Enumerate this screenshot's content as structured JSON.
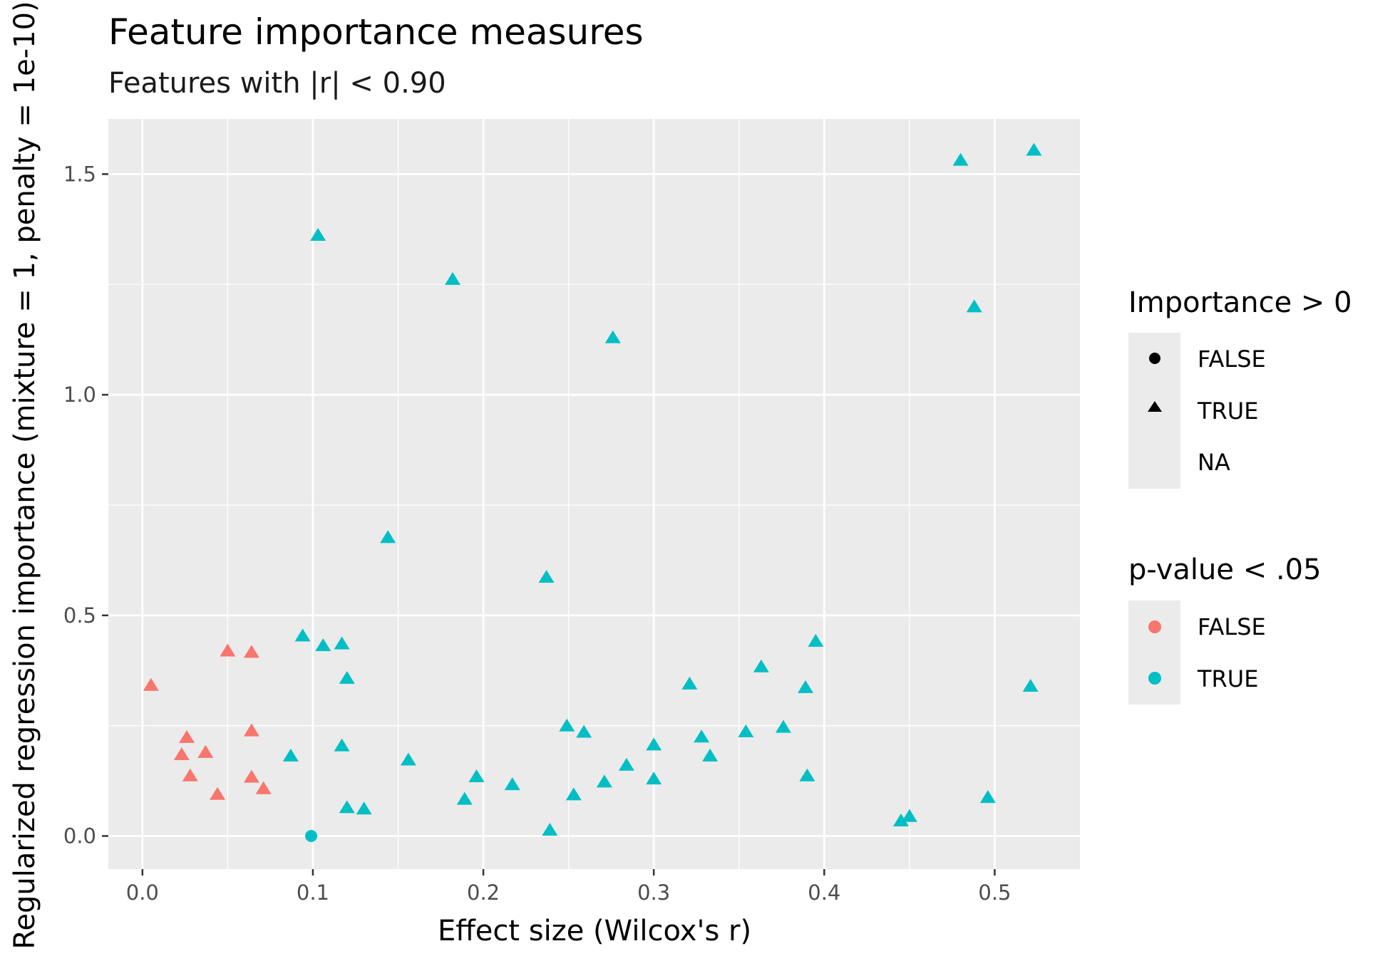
{
  "chart_data": {
    "type": "scatter",
    "title": "Feature importance measures",
    "subtitle": "Features with |r| < 0.90",
    "xlabel": "Effect size (Wilcox's r)",
    "ylabel": "Regularized regression importance (mixture = 1, penalty = 1e-10)",
    "xlim": [
      -0.02,
      0.55
    ],
    "ylim": [
      -0.075,
      1.625
    ],
    "x_ticks": [
      0.0,
      0.1,
      0.2,
      0.3,
      0.4,
      0.5
    ],
    "x_tick_labels": [
      "0.0",
      "0.1",
      "0.2",
      "0.3",
      "0.4",
      "0.5"
    ],
    "y_ticks": [
      0.0,
      0.5,
      1.0,
      1.5
    ],
    "y_tick_labels": [
      "0.0",
      "0.5",
      "1.0",
      "1.5"
    ],
    "grid": true,
    "legend_position": "right",
    "legends": [
      {
        "title": "Importance > 0",
        "entries": [
          {
            "label": "FALSE",
            "shape": "circle"
          },
          {
            "label": "TRUE",
            "shape": "triangle"
          },
          {
            "label": "NA",
            "shape": "none"
          }
        ]
      },
      {
        "title": "p-value < .05",
        "entries": [
          {
            "label": "FALSE",
            "color": "#F8766D"
          },
          {
            "label": "TRUE",
            "color": "#00BFC4"
          }
        ]
      }
    ],
    "colors": {
      "FALSE": "#F8766D",
      "TRUE": "#00BFC4",
      "panel": "#EBEBEB",
      "grid": "#FFFFFF"
    },
    "series": [
      {
        "pvalue_lt_05": "FALSE",
        "points": [
          {
            "x": 0.005,
            "y": 0.34,
            "importance_gt_0": "TRUE"
          },
          {
            "x": 0.023,
            "y": 0.183,
            "importance_gt_0": "TRUE"
          },
          {
            "x": 0.026,
            "y": 0.222,
            "importance_gt_0": "TRUE"
          },
          {
            "x": 0.028,
            "y": 0.135,
            "importance_gt_0": "TRUE"
          },
          {
            "x": 0.037,
            "y": 0.188,
            "importance_gt_0": "TRUE"
          },
          {
            "x": 0.044,
            "y": 0.093,
            "importance_gt_0": "TRUE"
          },
          {
            "x": 0.05,
            "y": 0.418,
            "importance_gt_0": "TRUE"
          },
          {
            "x": 0.064,
            "y": 0.415,
            "importance_gt_0": "TRUE"
          },
          {
            "x": 0.064,
            "y": 0.237,
            "importance_gt_0": "TRUE"
          },
          {
            "x": 0.064,
            "y": 0.132,
            "importance_gt_0": "TRUE"
          },
          {
            "x": 0.071,
            "y": 0.106,
            "importance_gt_0": "TRUE"
          }
        ]
      },
      {
        "pvalue_lt_05": "TRUE",
        "points": [
          {
            "x": 0.087,
            "y": 0.18,
            "importance_gt_0": "TRUE"
          },
          {
            "x": 0.094,
            "y": 0.452,
            "importance_gt_0": "TRUE"
          },
          {
            "x": 0.099,
            "y": 0.0,
            "importance_gt_0": "FALSE"
          },
          {
            "x": 0.103,
            "y": 1.36,
            "importance_gt_0": "TRUE"
          },
          {
            "x": 0.106,
            "y": 0.43,
            "importance_gt_0": "TRUE"
          },
          {
            "x": 0.117,
            "y": 0.434,
            "importance_gt_0": "TRUE"
          },
          {
            "x": 0.117,
            "y": 0.203,
            "importance_gt_0": "TRUE"
          },
          {
            "x": 0.12,
            "y": 0.356,
            "importance_gt_0": "TRUE"
          },
          {
            "x": 0.12,
            "y": 0.063,
            "importance_gt_0": "TRUE"
          },
          {
            "x": 0.13,
            "y": 0.06,
            "importance_gt_0": "TRUE"
          },
          {
            "x": 0.144,
            "y": 0.675,
            "importance_gt_0": "TRUE"
          },
          {
            "x": 0.156,
            "y": 0.171,
            "importance_gt_0": "TRUE"
          },
          {
            "x": 0.182,
            "y": 1.26,
            "importance_gt_0": "TRUE"
          },
          {
            "x": 0.189,
            "y": 0.082,
            "importance_gt_0": "TRUE"
          },
          {
            "x": 0.196,
            "y": 0.133,
            "importance_gt_0": "TRUE"
          },
          {
            "x": 0.217,
            "y": 0.115,
            "importance_gt_0": "TRUE"
          },
          {
            "x": 0.237,
            "y": 0.585,
            "importance_gt_0": "TRUE"
          },
          {
            "x": 0.239,
            "y": 0.012,
            "importance_gt_0": "TRUE"
          },
          {
            "x": 0.249,
            "y": 0.248,
            "importance_gt_0": "TRUE"
          },
          {
            "x": 0.253,
            "y": 0.092,
            "importance_gt_0": "TRUE"
          },
          {
            "x": 0.259,
            "y": 0.234,
            "importance_gt_0": "TRUE"
          },
          {
            "x": 0.271,
            "y": 0.121,
            "importance_gt_0": "TRUE"
          },
          {
            "x": 0.276,
            "y": 1.128,
            "importance_gt_0": "TRUE"
          },
          {
            "x": 0.284,
            "y": 0.159,
            "importance_gt_0": "TRUE"
          },
          {
            "x": 0.3,
            "y": 0.205,
            "importance_gt_0": "TRUE"
          },
          {
            "x": 0.3,
            "y": 0.128,
            "importance_gt_0": "TRUE"
          },
          {
            "x": 0.321,
            "y": 0.343,
            "importance_gt_0": "TRUE"
          },
          {
            "x": 0.328,
            "y": 0.223,
            "importance_gt_0": "TRUE"
          },
          {
            "x": 0.333,
            "y": 0.18,
            "importance_gt_0": "TRUE"
          },
          {
            "x": 0.354,
            "y": 0.235,
            "importance_gt_0": "TRUE"
          },
          {
            "x": 0.363,
            "y": 0.382,
            "importance_gt_0": "TRUE"
          },
          {
            "x": 0.376,
            "y": 0.245,
            "importance_gt_0": "TRUE"
          },
          {
            "x": 0.389,
            "y": 0.335,
            "importance_gt_0": "TRUE"
          },
          {
            "x": 0.39,
            "y": 0.135,
            "importance_gt_0": "TRUE"
          },
          {
            "x": 0.395,
            "y": 0.44,
            "importance_gt_0": "TRUE"
          },
          {
            "x": 0.445,
            "y": 0.033,
            "importance_gt_0": "TRUE"
          },
          {
            "x": 0.45,
            "y": 0.043,
            "importance_gt_0": "TRUE"
          },
          {
            "x": 0.48,
            "y": 1.53,
            "importance_gt_0": "TRUE"
          },
          {
            "x": 0.488,
            "y": 1.198,
            "importance_gt_0": "TRUE"
          },
          {
            "x": 0.496,
            "y": 0.086,
            "importance_gt_0": "TRUE"
          },
          {
            "x": 0.521,
            "y": 0.338,
            "importance_gt_0": "TRUE"
          },
          {
            "x": 0.523,
            "y": 1.553,
            "importance_gt_0": "TRUE"
          }
        ]
      }
    ]
  }
}
